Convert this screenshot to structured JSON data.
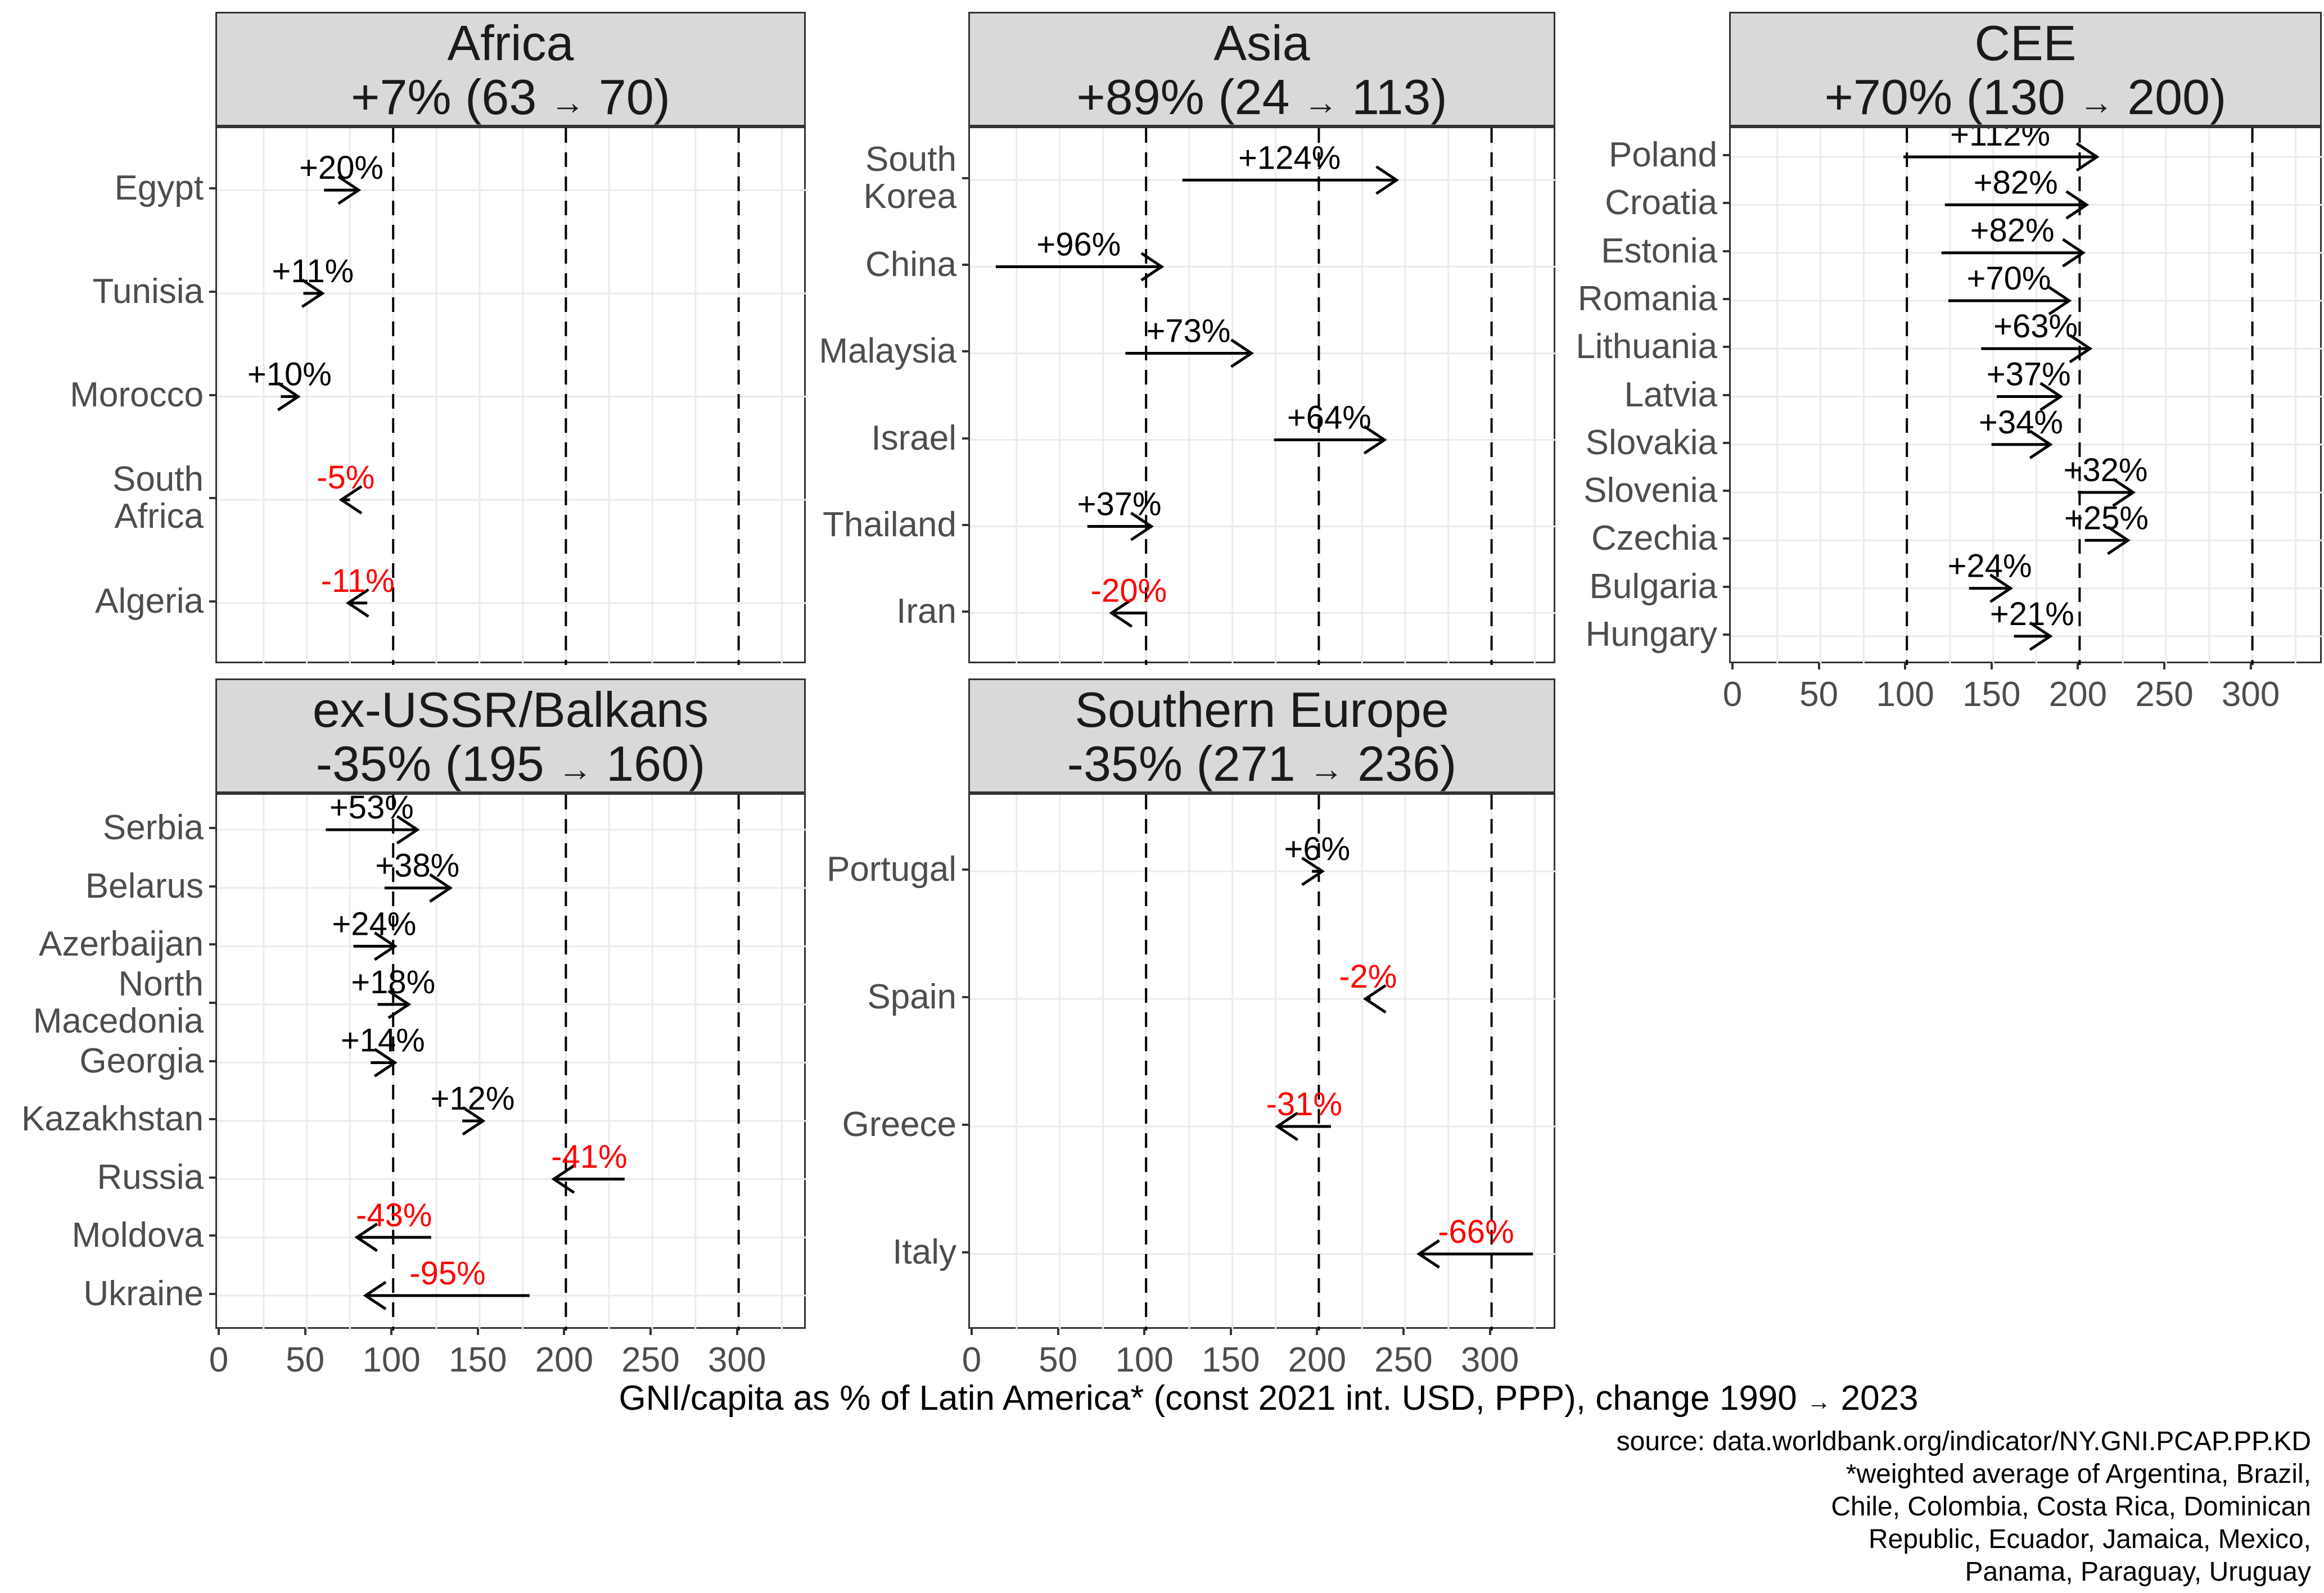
{
  "chart_data": {
    "type": "arrow-dumbbell-facets",
    "xlabel": "GNI/capita as % of Latin America* (const 2021 int. USD, PPP), change 1990 → 2023",
    "caption": [
      "source: data.worldbank.org/indicator/NY.GNI.PCAP.PP.KD",
      "*weighted average of Argentina, Brazil,",
      "Chile, Colombia, Costa Rica, Dominican",
      "Republic, Ecuador, Jamaica, Mexico,",
      "Panama, Paraguay, Uruguay"
    ],
    "x_axis": {
      "domain": [
        0,
        337
      ],
      "ticks": [
        0,
        50,
        100,
        150,
        200,
        250,
        300
      ],
      "dashed_reference_lines": [
        100,
        200,
        300
      ],
      "minor_grid_step": 25,
      "grid": true,
      "legend": "none"
    },
    "value_meaning": "GNI per capita as percent of Latin America weighted average; arrow from 1990 value to 2023 value; label is percentage-point change",
    "colors": {
      "arrow": "#000000",
      "positive_label": "#000000",
      "negative_label": "#ff0000",
      "strip_bg": "#d9d9d9",
      "strip_border": "#333333",
      "panel_border": "#333333",
      "grid": "#ebebeb",
      "axis_text": "#4d4d4d",
      "strip_text": "#1a1a1a",
      "dashed_line": "#000000",
      "caption_text": "#000000"
    },
    "panels": [
      {
        "id": "africa",
        "title": "Africa",
        "subtitle": "+7% (63 → 70)",
        "row": 0,
        "col": 0,
        "x_axis_labels": false,
        "countries": [
          {
            "name": "Egypt",
            "start": 60,
            "end": 80,
            "change": "+20%"
          },
          {
            "name": "Tunisia",
            "start": 48,
            "end": 59,
            "change": "+11%"
          },
          {
            "name": "Morocco",
            "start": 35,
            "end": 45,
            "change": "+10%"
          },
          {
            "name": "South\nAfrica",
            "start": 75,
            "end": 70,
            "change": "-5%"
          },
          {
            "name": "Algeria",
            "start": 85,
            "end": 74,
            "change": "-11%"
          }
        ]
      },
      {
        "id": "asia",
        "title": "Asia",
        "subtitle": "+89% (24 → 113)",
        "row": 0,
        "col": 1,
        "x_axis_labels": false,
        "countries": [
          {
            "name": "South\nKorea",
            "start": 121,
            "end": 245,
            "change": "+124%"
          },
          {
            "name": "China",
            "start": 13,
            "end": 109,
            "change": "+96%"
          },
          {
            "name": "Malaysia",
            "start": 88,
            "end": 161,
            "change": "+73%"
          },
          {
            "name": "Israel",
            "start": 174,
            "end": 238,
            "change": "+64%"
          },
          {
            "name": "Thailand",
            "start": 66,
            "end": 103,
            "change": "+37%"
          },
          {
            "name": "Iran",
            "start": 100,
            "end": 80,
            "change": "-20%"
          }
        ]
      },
      {
        "id": "cee",
        "title": "CEE",
        "subtitle": "+70% (130 → 200)",
        "row": 0,
        "col": 2,
        "x_axis_labels": true,
        "countries": [
          {
            "name": "Poland",
            "start": 98,
            "end": 210,
            "change": "+112%"
          },
          {
            "name": "Croatia",
            "start": 122,
            "end": 204,
            "change": "+82%"
          },
          {
            "name": "Estonia",
            "start": 120,
            "end": 202,
            "change": "+82%"
          },
          {
            "name": "Romania",
            "start": 124,
            "end": 194,
            "change": "+70%"
          },
          {
            "name": "Lithuania",
            "start": 143,
            "end": 206,
            "change": "+63%"
          },
          {
            "name": "Latvia",
            "start": 152,
            "end": 189,
            "change": "+37%"
          },
          {
            "name": "Slovakia",
            "start": 149,
            "end": 183,
            "change": "+34%"
          },
          {
            "name": "Slovenia",
            "start": 199,
            "end": 231,
            "change": "+32%"
          },
          {
            "name": "Czechia",
            "start": 203,
            "end": 228,
            "change": "+25%"
          },
          {
            "name": "Bulgaria",
            "start": 136,
            "end": 160,
            "change": "+24%"
          },
          {
            "name": "Hungary",
            "start": 162,
            "end": 183,
            "change": "+21%"
          }
        ]
      },
      {
        "id": "ex-ussr-balkans",
        "title": "ex-USSR/Balkans",
        "subtitle": "-35% (195 → 160)",
        "row": 1,
        "col": 0,
        "x_axis_labels": true,
        "countries": [
          {
            "name": "Serbia",
            "start": 61,
            "end": 114,
            "change": "+53%"
          },
          {
            "name": "Belarus",
            "start": 95,
            "end": 133,
            "change": "+38%"
          },
          {
            "name": "Azerbaijan",
            "start": 77,
            "end": 101,
            "change": "+24%"
          },
          {
            "name": "North\nMacedonia",
            "start": 91,
            "end": 109,
            "change": "+18%"
          },
          {
            "name": "Georgia",
            "start": 87,
            "end": 101,
            "change": "+14%"
          },
          {
            "name": "Kazakhstan",
            "start": 140,
            "end": 152,
            "change": "+12%"
          },
          {
            "name": "Russia",
            "start": 234,
            "end": 193,
            "change": "-41%"
          },
          {
            "name": "Moldova",
            "start": 122,
            "end": 79,
            "change": "-43%"
          },
          {
            "name": "Ukraine",
            "start": 179,
            "end": 84,
            "change": "-95%"
          }
        ]
      },
      {
        "id": "southern-europe",
        "title": "Southern Europe",
        "subtitle": "-35% (271 → 236)",
        "row": 1,
        "col": 1,
        "x_axis_labels": true,
        "countries": [
          {
            "name": "Portugal",
            "start": 196,
            "end": 202,
            "change": "+6%"
          },
          {
            "name": "Spain",
            "start": 230,
            "end": 227,
            "change": "-2%"
          },
          {
            "name": "Greece",
            "start": 207,
            "end": 176,
            "change": "-31%"
          },
          {
            "name": "Italy",
            "start": 324,
            "end": 258,
            "change": "-66%"
          }
        ]
      }
    ]
  }
}
